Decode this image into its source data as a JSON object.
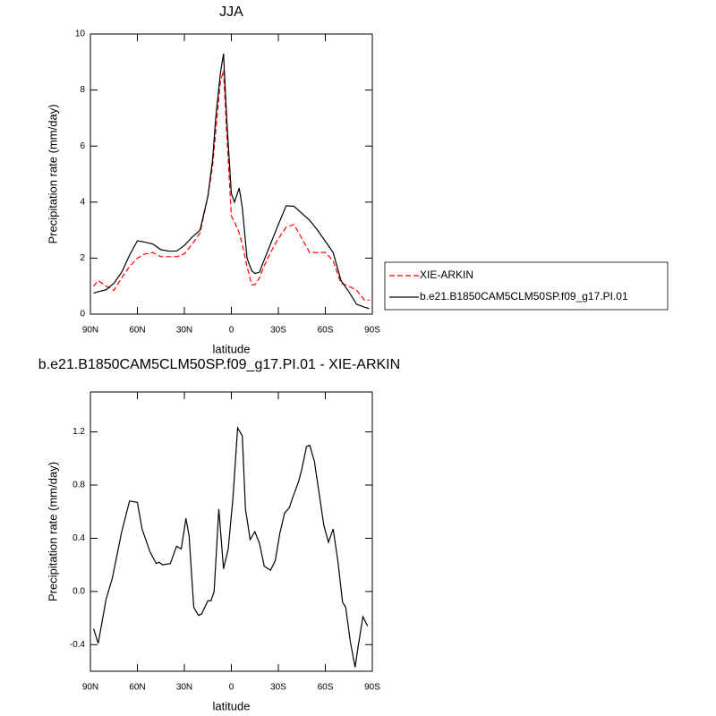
{
  "chart_data": [
    {
      "type": "line",
      "title": "JJA",
      "x_label": "latitude",
      "y_label": "Precipitation rate (mm/day)",
      "x": [
        88,
        85,
        80,
        75,
        70,
        65,
        60,
        55,
        50,
        45,
        40,
        35,
        30,
        25,
        20,
        15,
        12,
        10,
        7,
        5,
        3,
        0,
        -2,
        -5,
        -7,
        -10,
        -13,
        -15,
        -18,
        -20,
        -25,
        -30,
        -35,
        -40,
        -45,
        -50,
        -55,
        -60,
        -65,
        -70,
        -75,
        -80,
        -85,
        -88
      ],
      "series": [
        {
          "name": "XIE-ARKIN",
          "color": "#ff0000",
          "line_style": "dashed",
          "values": [
            1.0,
            1.2,
            1.0,
            0.85,
            1.3,
            1.7,
            2.0,
            2.15,
            2.2,
            2.05,
            2.05,
            2.05,
            2.15,
            2.5,
            2.9,
            4.2,
            5.3,
            6.5,
            8.3,
            8.7,
            6.5,
            3.5,
            3.3,
            2.9,
            2.5,
            1.7,
            1.05,
            1.05,
            1.3,
            1.6,
            2.2,
            2.7,
            3.1,
            3.2,
            2.7,
            2.2,
            2.2,
            2.2,
            1.9,
            1.1,
            1.0,
            0.85,
            0.5,
            0.5
          ]
        },
        {
          "name": "b.e21.B1850CAM5CLM50SP.f09_g17.PI.01",
          "color": "#000000",
          "line_style": "solid",
          "values": [
            0.75,
            0.8,
            0.87,
            1.1,
            1.5,
            2.1,
            2.62,
            2.57,
            2.5,
            2.3,
            2.25,
            2.25,
            2.45,
            2.75,
            3.0,
            4.2,
            5.5,
            7.0,
            8.6,
            9.3,
            7.0,
            4.3,
            4.0,
            4.5,
            3.8,
            2.0,
            1.55,
            1.45,
            1.5,
            1.8,
            2.5,
            3.2,
            3.87,
            3.85,
            3.6,
            3.35,
            3.0,
            2.6,
            2.2,
            1.2,
            0.8,
            0.35,
            0.25,
            0.2
          ]
        }
      ],
      "xlim": [
        90,
        -90
      ],
      "xticks": [
        {
          "value": 90,
          "label": "90N"
        },
        {
          "value": 60,
          "label": "60N"
        },
        {
          "value": 30,
          "label": "30N"
        },
        0,
        {
          "value": -30,
          "label": "30S"
        },
        {
          "value": -60,
          "label": "60S"
        },
        {
          "value": -90,
          "label": "90S"
        }
      ],
      "ylim": [
        0,
        10
      ],
      "yticks": [
        0,
        2,
        4,
        6,
        8,
        10
      ],
      "legend": "right"
    },
    {
      "type": "line",
      "title": "b.e21.B1850CAM5CLM50SP.f09_g17.PI.01 - XIE-ARKIN",
      "x_label": "latitude",
      "y_label": "Precipitation rate (mm/day)",
      "x": [
        88,
        85,
        80,
        76,
        70,
        65,
        60,
        57,
        52,
        48,
        46,
        44,
        39,
        35,
        32,
        29,
        27,
        24,
        21,
        19,
        15,
        13,
        11,
        8,
        5,
        2,
        -1,
        -4,
        -7,
        -9,
        -12,
        -15,
        -18,
        -21,
        -25,
        -28,
        -31,
        -34,
        -37,
        -39,
        -43,
        -45,
        -48,
        -50,
        -53,
        -56,
        -59,
        -62,
        -65,
        -68,
        -71,
        -73,
        -76,
        -79,
        -81,
        -84,
        -87
      ],
      "values": [
        -0.28,
        -0.39,
        -0.06,
        0.1,
        0.45,
        0.68,
        0.67,
        0.47,
        0.3,
        0.21,
        0.22,
        0.2,
        0.21,
        0.34,
        0.32,
        0.55,
        0.42,
        -0.12,
        -0.18,
        -0.17,
        -0.07,
        -0.07,
        0.0,
        0.62,
        0.17,
        0.32,
        0.7,
        1.23,
        1.17,
        0.62,
        0.39,
        0.45,
        0.36,
        0.19,
        0.16,
        0.23,
        0.44,
        0.59,
        0.63,
        0.7,
        0.83,
        0.92,
        1.09,
        1.1,
        0.98,
        0.74,
        0.5,
        0.37,
        0.47,
        0.23,
        -0.08,
        -0.12,
        -0.38,
        -0.57,
        -0.41,
        -0.19,
        -0.26
      ],
      "color": "#000000",
      "xlim": [
        90,
        -90
      ],
      "xticks": [
        {
          "value": 90,
          "label": "90N"
        },
        {
          "value": 60,
          "label": "60N"
        },
        {
          "value": 30,
          "label": "30N"
        },
        0,
        {
          "value": -30,
          "label": "30S"
        },
        {
          "value": -60,
          "label": "60S"
        },
        {
          "value": -90,
          "label": "90S"
        }
      ],
      "ylim": [
        -0.6,
        1.5
      ],
      "yticks": [
        -0.4,
        {
          "value": 0,
          "label": "0.0"
        },
        0.4,
        0.8,
        1.2
      ]
    }
  ]
}
